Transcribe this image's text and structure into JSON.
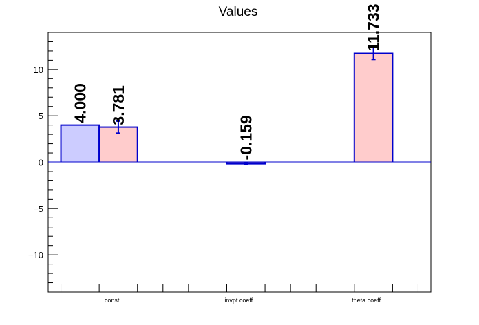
{
  "chart_data": {
    "type": "bar",
    "title": "Values",
    "xlabel": "",
    "ylabel": "",
    "categories": [
      "const",
      "invpt coeff.",
      "theta coeff."
    ],
    "ylim": [
      -14,
      14
    ],
    "yticks": [
      -10,
      -5,
      0,
      5,
      10
    ],
    "ytick_labels": [
      "−10",
      "−5",
      "0",
      "5",
      "10"
    ],
    "grid": false,
    "series": [
      {
        "fill": "#ccccff",
        "stroke": "#0000cc",
        "values": [
          4.0,
          null,
          null
        ],
        "errors": [
          0,
          null,
          null
        ],
        "labels": [
          "4.000",
          "",
          ""
        ]
      },
      {
        "fill": "#ffcccc",
        "stroke": "#0000cc",
        "values": [
          3.781,
          -0.159,
          11.733
        ],
        "errors": [
          0.65,
          0.05,
          0.65
        ],
        "labels": [
          "3.781",
          "-0.159",
          "11.733"
        ]
      }
    ]
  }
}
